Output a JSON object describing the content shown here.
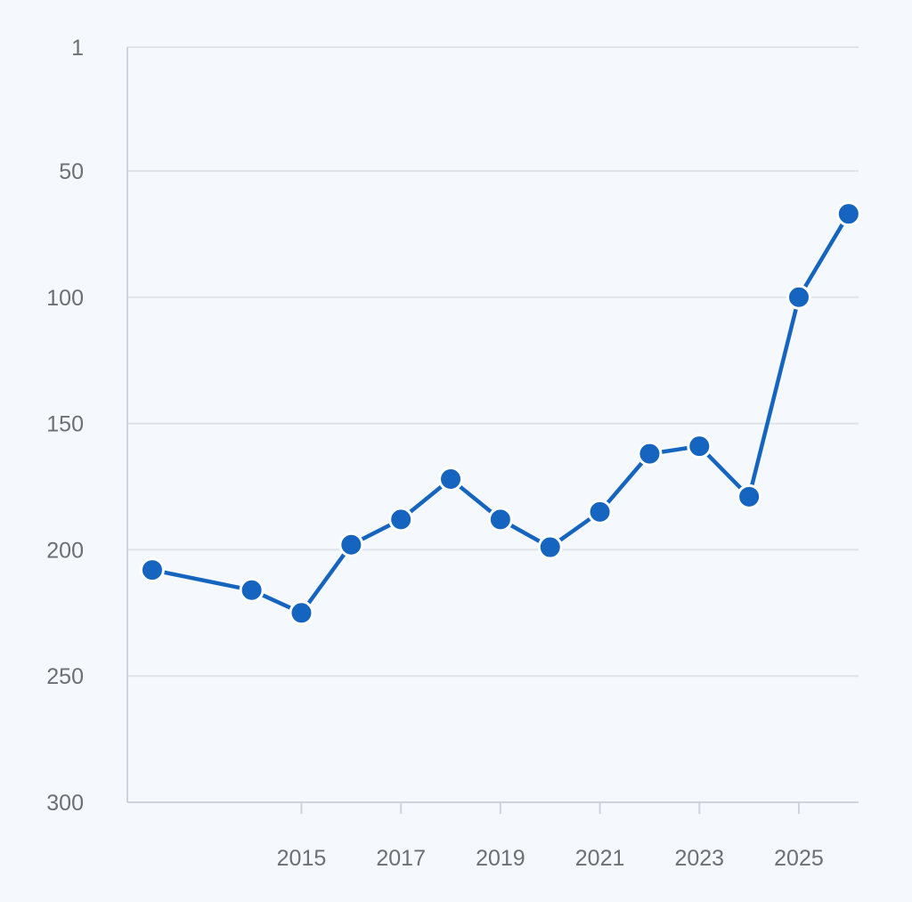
{
  "chart_data": {
    "type": "line",
    "y_axis": {
      "inverted": true,
      "ylim": [
        1,
        300
      ],
      "ticks": [
        1,
        50,
        100,
        150,
        200,
        250,
        300
      ],
      "tick_labels": [
        "1",
        "50",
        "100",
        "150",
        "200",
        "250",
        "300"
      ]
    },
    "x_axis": {
      "xlim": [
        2011.5,
        2026.2
      ],
      "ticks": [
        2015,
        2017,
        2019,
        2021,
        2023,
        2025
      ],
      "tick_labels": [
        "2015",
        "2017",
        "2019",
        "2021",
        "2023",
        "2025"
      ]
    },
    "grid": true,
    "legend": "none",
    "series": [
      {
        "color": "#1565c0",
        "marker": "circle",
        "points": [
          {
            "x": 2012,
            "y": 208
          },
          {
            "x": 2014,
            "y": 216
          },
          {
            "x": 2015,
            "y": 225
          },
          {
            "x": 2016,
            "y": 198
          },
          {
            "x": 2017,
            "y": 188
          },
          {
            "x": 2018,
            "y": 172
          },
          {
            "x": 2019,
            "y": 188
          },
          {
            "x": 2020,
            "y": 199
          },
          {
            "x": 2021,
            "y": 185
          },
          {
            "x": 2022,
            "y": 162
          },
          {
            "x": 2023,
            "y": 159
          },
          {
            "x": 2024,
            "y": 179
          },
          {
            "x": 2025,
            "y": 100
          },
          {
            "x": 2026,
            "y": 67
          }
        ]
      }
    ]
  },
  "colors": {
    "background": "#f5f9fd",
    "line": "#1565c0",
    "grid": "#dfe3ea",
    "tick_text": "#6b6f76"
  }
}
